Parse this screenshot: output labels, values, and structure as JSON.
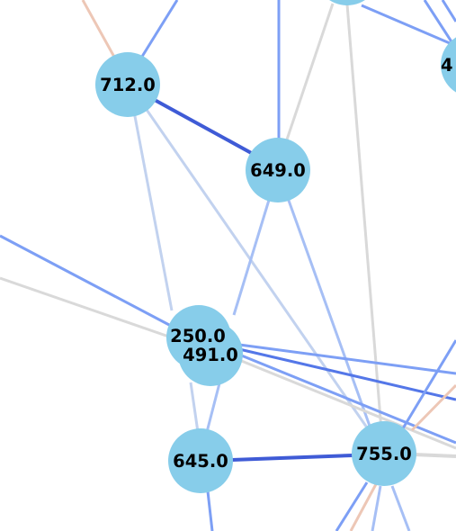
{
  "colors": {
    "node_fill": "#87cdea",
    "edge_dark_blue": "#3f5bd6",
    "edge_blue": "#7d9ff5",
    "edge_light_blue": "#a6bff5",
    "edge_pale_blue": "#c2d2ef",
    "edge_gray": "#d9d9d9",
    "edge_peach": "#edc7b6",
    "label_text": "#000000"
  },
  "nodes": [
    {
      "id": "n712",
      "label": "712.0"
    },
    {
      "id": "n649",
      "label": "649.0"
    },
    {
      "id": "n250",
      "label": "250.0"
    },
    {
      "id": "n491",
      "label": "491.0"
    },
    {
      "id": "n645",
      "label": "645.0"
    },
    {
      "id": "n755",
      "label": "755.0"
    },
    {
      "id": "n4xx",
      "label": "4"
    },
    {
      "id": "ntop",
      "label": ""
    }
  ]
}
